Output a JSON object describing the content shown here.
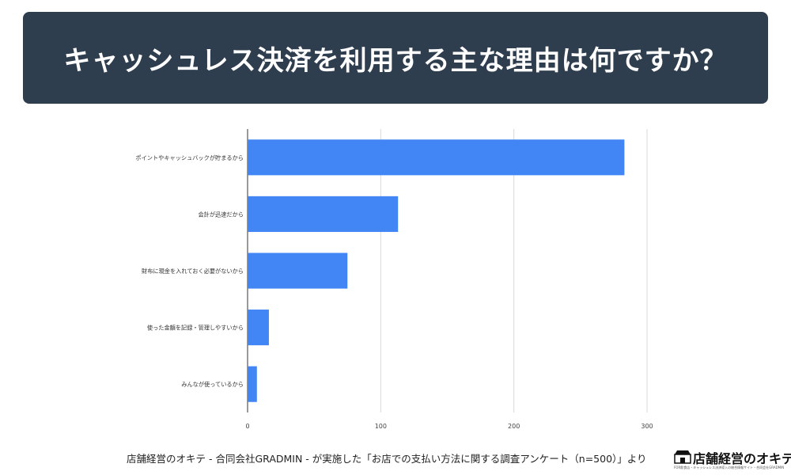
{
  "title": "キャッシュレス決済を利用する主な理由は何ですか？",
  "chart_data": {
    "type": "bar",
    "orientation": "horizontal",
    "categories": [
      "ポイントやキャッシュバックが貯まるから",
      "会計が迅速だから",
      "財布に現金を入れておく必要がないから",
      "使った金額を記録・管理しやすいから",
      "みんなが使っているから"
    ],
    "values": [
      283,
      113,
      75,
      16,
      7
    ],
    "xlim": [
      0,
      300
    ],
    "xticks": [
      0,
      100,
      200,
      300
    ],
    "grid": true,
    "bar_color": "#4285f4"
  },
  "footer": {
    "source": "店舗経営のオキテ - 合同会社GRADMIN - が実施した「お店での支払い方法に関する調査アンケート（n=500）」より"
  },
  "logo": {
    "text": "店舗経営のオキテ",
    "subtext": "FOR飲食店・キャッシュレス決済導入の総合情報サイト・合同会社GRADMIN"
  }
}
